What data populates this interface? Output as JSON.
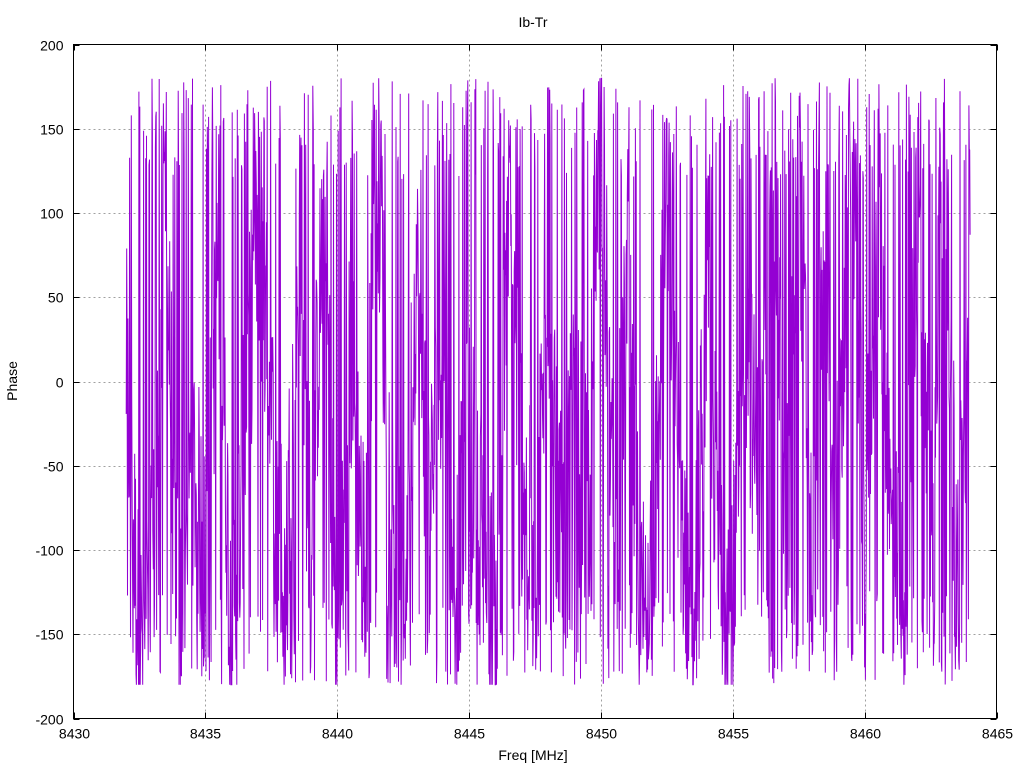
{
  "chart_data": {
    "type": "line",
    "title": "Ib-Tr",
    "xlabel": "Freq [MHz]",
    "ylabel": "Phase",
    "xlim": [
      8430,
      8465
    ],
    "ylim": [
      -200,
      200
    ],
    "x_ticks": [
      "8430",
      "8435",
      "8440",
      "8445",
      "8450",
      "8455",
      "8460",
      "8465"
    ],
    "y_ticks": [
      "200",
      "150",
      "100",
      "50",
      "0",
      "-50",
      "-100",
      "-150",
      "-200"
    ],
    "grid": true,
    "legend": "none",
    "series": [
      {
        "color": "#9400d3",
        "x_range": [
          8432,
          8464
        ],
        "x": [
          8432,
          8432.5,
          8433,
          8433.5,
          8434,
          8434.5,
          8435,
          8435.5,
          8436,
          8436.5,
          8437,
          8437.5,
          8438,
          8438.5,
          8439,
          8439.5,
          8440,
          8440.5,
          8441,
          8441.5,
          8442,
          8442.5,
          8443,
          8443.5,
          8444,
          8444.5,
          8445,
          8445.5,
          8446,
          8446.5,
          8447,
          8447.5,
          8448,
          8448.5,
          8449,
          8449.5,
          8450,
          8450.5,
          8451,
          8451.5,
          8452,
          8452.5,
          8453,
          8453.5,
          8454,
          8454.5,
          8455,
          8455.5,
          8456,
          8456.5,
          8457,
          8457.5,
          8458,
          8458.5,
          8459,
          8459.5,
          8460,
          8460.5,
          8461,
          8461.5,
          8462,
          8462.5,
          8463,
          8463.5,
          8464
        ],
        "y": [
          10,
          -160,
          -120,
          90,
          -150,
          -40,
          -110,
          80,
          -160,
          -30,
          100,
          -20,
          -130,
          60,
          -90,
          110,
          -170,
          20,
          -100,
          150,
          -60,
          -140,
          70,
          -80,
          40,
          -120,
          -30,
          -90,
          -150,
          90,
          -40,
          -120,
          60,
          -100,
          -20,
          -80,
          170,
          -110,
          50,
          -140,
          -90,
          120,
          -60,
          -150,
          40,
          -100,
          -130,
          30,
          -70,
          160,
          -100,
          140,
          -120,
          60,
          -80,
          170,
          -110,
          120,
          -90,
          -150,
          100,
          -60,
          140,
          -120,
          20
        ],
        "sample_count": 2000,
        "y_min": -180,
        "y_max": 180,
        "style": "dense noisy phase trace wrapping between -180 and 180"
      }
    ]
  }
}
